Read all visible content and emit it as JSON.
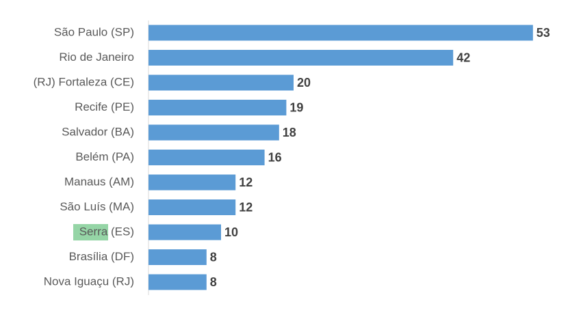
{
  "chart_data": {
    "type": "bar",
    "orientation": "horizontal",
    "categories": [
      "São Paulo (SP)",
      "Rio de Janeiro",
      "(RJ) Fortaleza (CE)",
      "Recife (PE)",
      "Salvador (BA)",
      "Belém (PA)",
      "Manaus (AM)",
      "São Luís (MA)",
      "Serra (ES)",
      "Brasília (DF)",
      "Nova Iguaçu (RJ)"
    ],
    "values": [
      53,
      42,
      20,
      19,
      18,
      16,
      12,
      12,
      10,
      8,
      8
    ],
    "color": "#5b9bd5"
  }
}
